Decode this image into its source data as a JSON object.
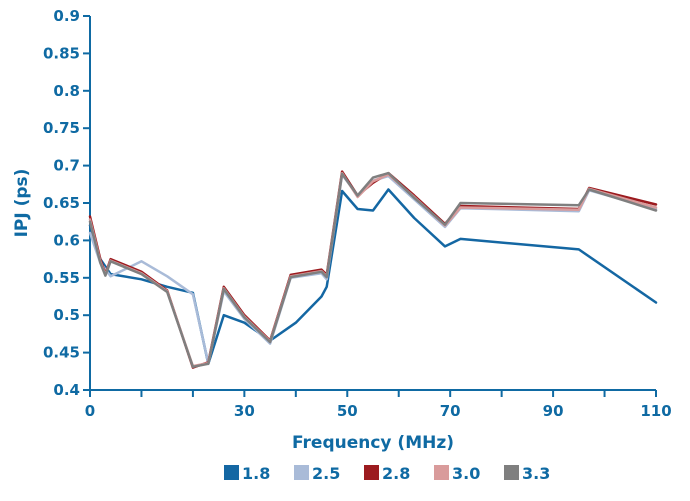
{
  "chart_data": {
    "type": "line",
    "title": "",
    "xlabel": "Frequency (MHz)",
    "ylabel": "IPJ (ps)",
    "xlim": [
      0,
      110
    ],
    "ylim": [
      0.4,
      0.9
    ],
    "x_ticks": [
      0,
      30,
      50,
      70,
      90,
      110
    ],
    "y_ticks": [
      0.4,
      0.45,
      0.5,
      0.55,
      0.6,
      0.65,
      0.7,
      0.75,
      0.8,
      0.85,
      0.9
    ],
    "x_tick_labels": [
      "0",
      "30",
      "50",
      "70",
      "90",
      "110"
    ],
    "y_tick_labels": [
      "0.4",
      "0.45",
      "0.5",
      "0.55",
      "0.6",
      "0.65",
      "0.7",
      "0.75",
      "0.8",
      "0.85",
      "0.9"
    ],
    "axis_ticks": {
      "x_spacing": 10,
      "y_spacing": 0.05
    },
    "grid": false,
    "legend_position": "bottom",
    "series": [
      {
        "name": "1.8",
        "color": "#1467a3",
        "x": [
          0,
          2,
          4,
          10,
          15,
          20,
          23,
          26,
          30,
          35,
          40,
          45,
          46,
          49,
          52,
          55,
          58,
          63,
          69,
          72,
          95,
          110
        ],
        "y": [
          0.62,
          0.575,
          0.555,
          0.548,
          0.538,
          0.53,
          0.435,
          0.5,
          0.49,
          0.466,
          0.49,
          0.525,
          0.538,
          0.666,
          0.642,
          0.64,
          0.668,
          0.63,
          0.592,
          0.602,
          0.588,
          0.517
        ]
      },
      {
        "name": "2.5",
        "color": "#a9bbd8",
        "x": [
          0,
          2,
          4,
          10,
          15,
          20,
          23,
          26,
          30,
          35,
          39,
          45,
          46,
          49,
          52,
          55,
          58,
          63,
          69,
          72,
          95,
          97,
          110
        ],
        "y": [
          0.61,
          0.57,
          0.552,
          0.572,
          0.552,
          0.528,
          0.436,
          0.532,
          0.495,
          0.462,
          0.55,
          0.556,
          0.548,
          0.688,
          0.66,
          0.68,
          0.686,
          0.655,
          0.618,
          0.643,
          0.639,
          0.667,
          0.642
        ]
      },
      {
        "name": "2.8",
        "color": "#9c1b1f",
        "x": [
          0,
          2,
          3,
          4,
          10,
          15,
          20,
          23,
          26,
          30,
          35,
          39,
          45,
          46,
          49,
          52,
          55,
          58,
          63,
          69,
          72,
          95,
          97,
          110
        ],
        "y": [
          0.632,
          0.575,
          0.555,
          0.575,
          0.558,
          0.533,
          0.43,
          0.437,
          0.538,
          0.5,
          0.466,
          0.554,
          0.561,
          0.554,
          0.692,
          0.66,
          0.677,
          0.69,
          0.66,
          0.622,
          0.646,
          0.642,
          0.67,
          0.648
        ]
      },
      {
        "name": "3.0",
        "color": "#d99b9b",
        "x": [
          0,
          2,
          3,
          4,
          10,
          15,
          20,
          23,
          26,
          30,
          35,
          39,
          45,
          46,
          49,
          52,
          55,
          58,
          63,
          69,
          72,
          95,
          97,
          110
        ],
        "y": [
          0.628,
          0.572,
          0.554,
          0.573,
          0.556,
          0.532,
          0.432,
          0.436,
          0.536,
          0.498,
          0.465,
          0.552,
          0.559,
          0.552,
          0.69,
          0.658,
          0.679,
          0.688,
          0.658,
          0.62,
          0.644,
          0.641,
          0.669,
          0.644
        ]
      },
      {
        "name": "3.3",
        "color": "#7f7f7f",
        "x": [
          0,
          2,
          3,
          4,
          10,
          15,
          20,
          23,
          26,
          30,
          35,
          39,
          45,
          46,
          49,
          52,
          55,
          58,
          63,
          69,
          72,
          95,
          97,
          110
        ],
        "y": [
          0.625,
          0.57,
          0.553,
          0.572,
          0.555,
          0.531,
          0.431,
          0.435,
          0.535,
          0.497,
          0.464,
          0.551,
          0.558,
          0.551,
          0.689,
          0.66,
          0.684,
          0.69,
          0.657,
          0.621,
          0.65,
          0.647,
          0.668,
          0.64
        ]
      }
    ]
  }
}
